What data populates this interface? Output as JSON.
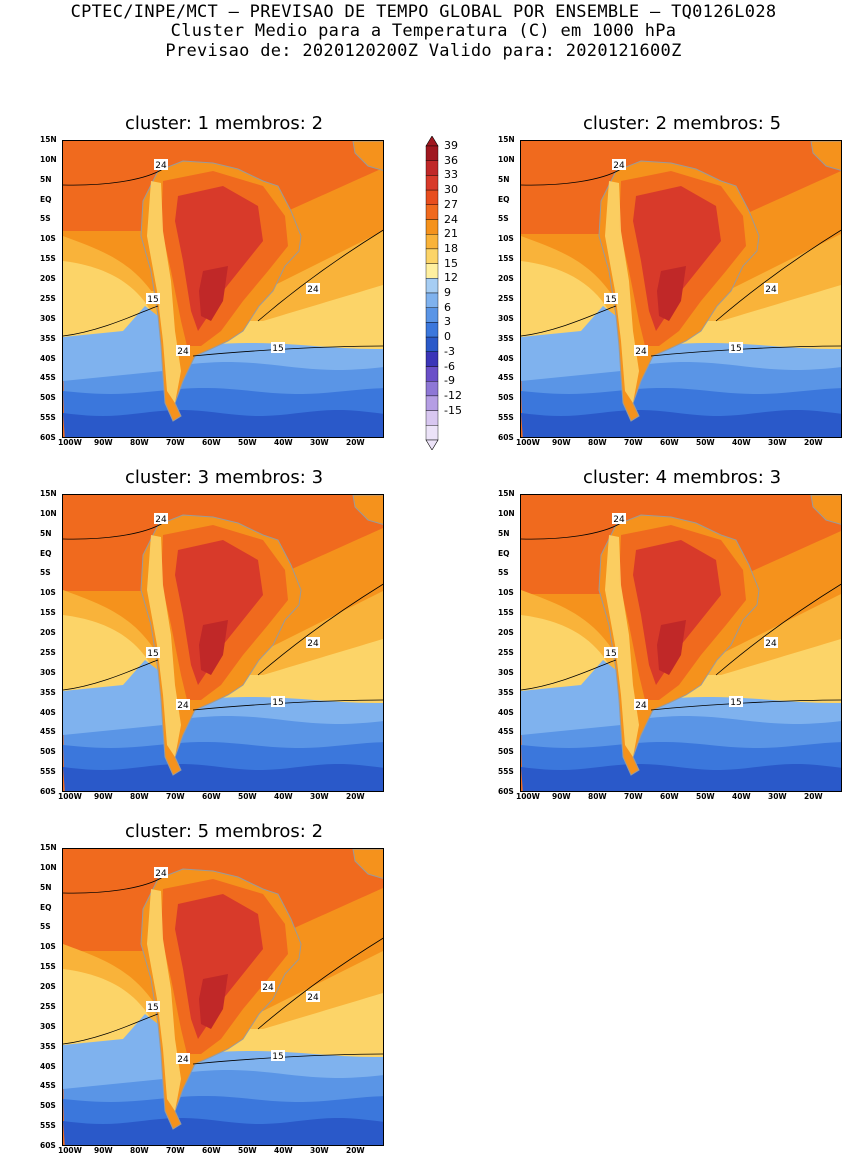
{
  "header": {
    "line1": "CPTEC/INPE/MCT — PREVISAO DE TEMPO GLOBAL POR ENSEMBLE — TQ0126L028",
    "line2": "Cluster Medio para a Temperatura (C) em 1000 hPa",
    "line3": "Previsao de: 2020120200Z   Valido para: 2020121600Z"
  },
  "panels": [
    {
      "title": "cluster: 1  membros: 2",
      "contour_labels": [
        "24",
        "24",
        "15",
        "24",
        "15"
      ]
    },
    {
      "title": "cluster: 2  membros: 5",
      "contour_labels": [
        "24",
        "24",
        "15",
        "24",
        "15"
      ]
    },
    {
      "title": "cluster: 3  membros: 3",
      "contour_labels": [
        "24",
        "24",
        "15",
        "24",
        "15"
      ]
    },
    {
      "title": "cluster: 4  membros: 3",
      "contour_labels": [
        "24",
        "24",
        "15",
        "24",
        "15"
      ]
    },
    {
      "title": "cluster: 5  membros: 2",
      "contour_labels": [
        "24",
        "24",
        "15",
        "24",
        "15",
        "24"
      ]
    }
  ],
  "lat_ticks": [
    "15N",
    "10N",
    "5N",
    "EQ",
    "5S",
    "10S",
    "15S",
    "20S",
    "25S",
    "30S",
    "35S",
    "40S",
    "45S",
    "50S",
    "55S",
    "60S"
  ],
  "lon_ticks": [
    "100W",
    "90W",
    "80W",
    "70W",
    "60W",
    "50W",
    "40W",
    "30W",
    "20W"
  ],
  "colorbar": {
    "labels": [
      "39",
      "36",
      "33",
      "30",
      "27",
      "24",
      "21",
      "18",
      "15",
      "12",
      "9",
      "6",
      "3",
      "0",
      "-3",
      "-6",
      "-9",
      "-12",
      "-15"
    ],
    "colors": [
      "#a01820",
      "#c02828",
      "#d83a2a",
      "#e84e1e",
      "#f06a1e",
      "#f5921c",
      "#f9b33a",
      "#fcd468",
      "#fff0a0",
      "#a6cdf3",
      "#7fb2ee",
      "#5a95e6",
      "#3b77dc",
      "#2a59c9",
      "#3b35b8",
      "#6a4fc8",
      "#8e77d6",
      "#b59ee4",
      "#d8c7f0",
      "#ece3f8"
    ]
  },
  "palette": {
    "tropic_warm": "#f06a1e",
    "subtropic_orange": "#f5921c",
    "yellow_band": "#f9b33a",
    "pale_yellow": "#fcd468",
    "cool_blue": "#7fb2ee",
    "mid_blue": "#5a95e6",
    "deep_blue": "#3b77dc",
    "navy": "#2a59c9",
    "land_hot": "#d83a2a",
    "land_hotter": "#c02828",
    "coast_gray": "#9a9a9a"
  }
}
